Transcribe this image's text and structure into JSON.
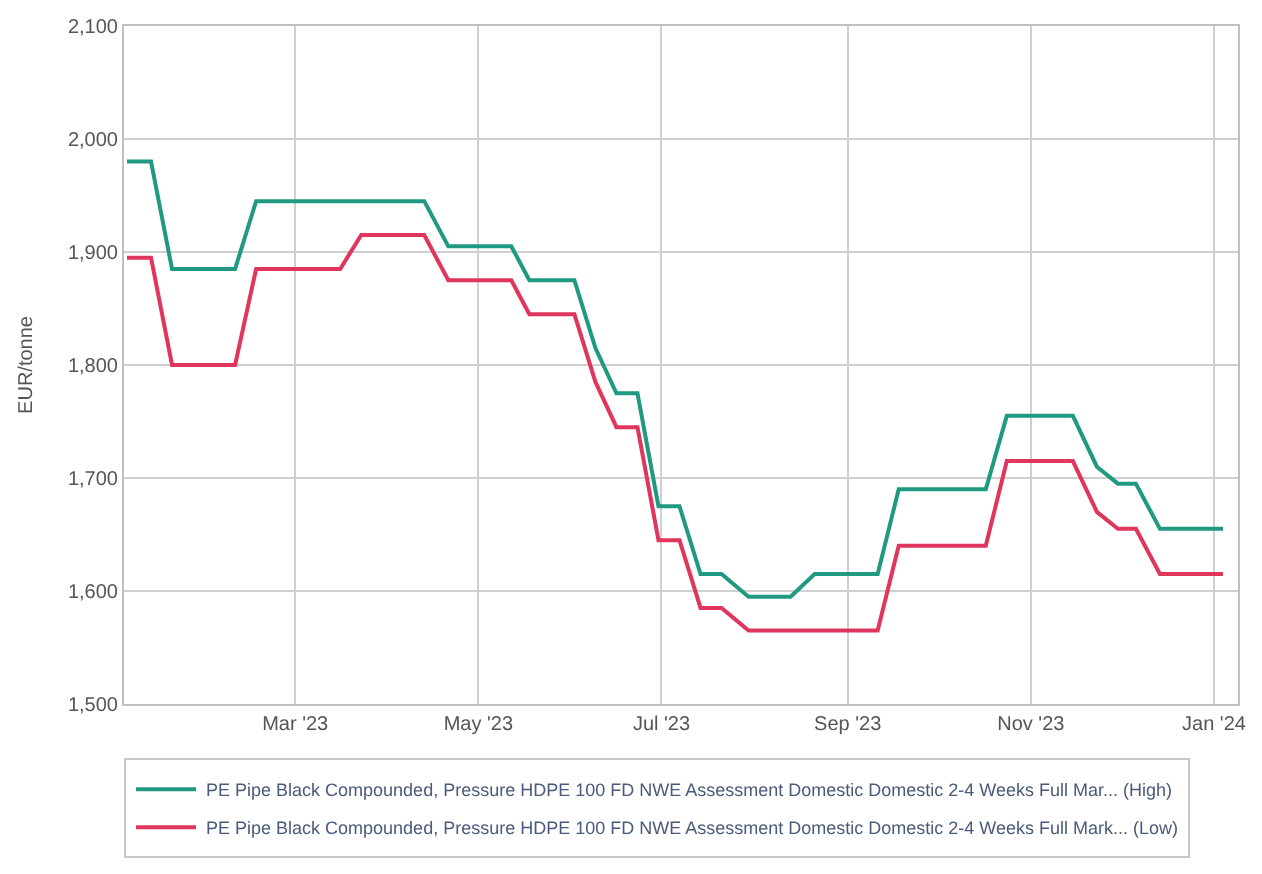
{
  "chart_data": {
    "type": "line",
    "ylabel": "EUR/tonne",
    "xlim": [
      "2023-01-03",
      "2024-01-09"
    ],
    "ylim": [
      1500,
      2100
    ],
    "xticks": [
      {
        "value": "2023-03-01",
        "label": "Mar '23"
      },
      {
        "value": "2023-05-01",
        "label": "May '23"
      },
      {
        "value": "2023-07-01",
        "label": "Jul '23"
      },
      {
        "value": "2023-09-01",
        "label": "Sep '23"
      },
      {
        "value": "2023-11-01",
        "label": "Nov '23"
      },
      {
        "value": "2024-01-01",
        "label": "Jan '24"
      }
    ],
    "yticks": [
      {
        "value": 1500,
        "label": "1,500"
      },
      {
        "value": 1600,
        "label": "1,600"
      },
      {
        "value": 1700,
        "label": "1,700"
      },
      {
        "value": 1800,
        "label": "1,800"
      },
      {
        "value": 1900,
        "label": "1,900"
      },
      {
        "value": 2000,
        "label": "2,000"
      },
      {
        "value": 2100,
        "label": "2,100"
      }
    ],
    "grid": true,
    "legend": "bottom",
    "marker": "none",
    "line_style": "solid",
    "series": [
      {
        "name": "PE Pipe Black Compounded, Pressure HDPE 100 FD NWE Assessment Domestic Domestic 2-4 Weeks Full Mar... (High)",
        "color": "#1f9a80",
        "x": [
          "2023-01-04",
          "2023-01-12",
          "2023-01-19",
          "2023-02-09",
          "2023-02-16",
          "2023-04-13",
          "2023-04-21",
          "2023-05-12",
          "2023-05-18",
          "2023-06-02",
          "2023-06-09",
          "2023-06-16",
          "2023-06-23",
          "2023-06-30",
          "2023-07-07",
          "2023-07-14",
          "2023-07-21",
          "2023-07-30",
          "2023-08-13",
          "2023-08-21",
          "2023-09-11",
          "2023-09-18",
          "2023-10-17",
          "2023-10-24",
          "2023-11-15",
          "2023-11-23",
          "2023-11-30",
          "2023-12-06",
          "2023-12-14",
          "2024-01-04"
        ],
        "values": [
          1980,
          1980,
          1885,
          1885,
          1945,
          1945,
          1905,
          1905,
          1875,
          1875,
          1815,
          1775,
          1775,
          1675,
          1675,
          1615,
          1615,
          1595,
          1595,
          1615,
          1615,
          1690,
          1690,
          1755,
          1755,
          1710,
          1695,
          1695,
          1655,
          1655
        ]
      },
      {
        "name": "PE Pipe Black Compounded, Pressure HDPE 100 FD NWE Assessment Domestic Domestic 2-4 Weeks Full Mark... (Low)",
        "color": "#e0355c",
        "x": [
          "2023-01-04",
          "2023-01-12",
          "2023-01-19",
          "2023-02-09",
          "2023-02-16",
          "2023-03-16",
          "2023-03-23",
          "2023-04-13",
          "2023-04-21",
          "2023-05-12",
          "2023-05-18",
          "2023-06-02",
          "2023-06-09",
          "2023-06-16",
          "2023-06-23",
          "2023-06-30",
          "2023-07-07",
          "2023-07-14",
          "2023-07-21",
          "2023-07-30",
          "2023-09-11",
          "2023-09-18",
          "2023-10-17",
          "2023-10-24",
          "2023-11-15",
          "2023-11-23",
          "2023-11-30",
          "2023-12-06",
          "2023-12-14",
          "2024-01-04"
        ],
        "values": [
          1895,
          1895,
          1800,
          1800,
          1885,
          1885,
          1915,
          1915,
          1875,
          1875,
          1845,
          1845,
          1785,
          1745,
          1745,
          1645,
          1645,
          1585,
          1585,
          1565,
          1565,
          1640,
          1640,
          1715,
          1715,
          1670,
          1655,
          1655,
          1615,
          1615
        ]
      }
    ]
  }
}
